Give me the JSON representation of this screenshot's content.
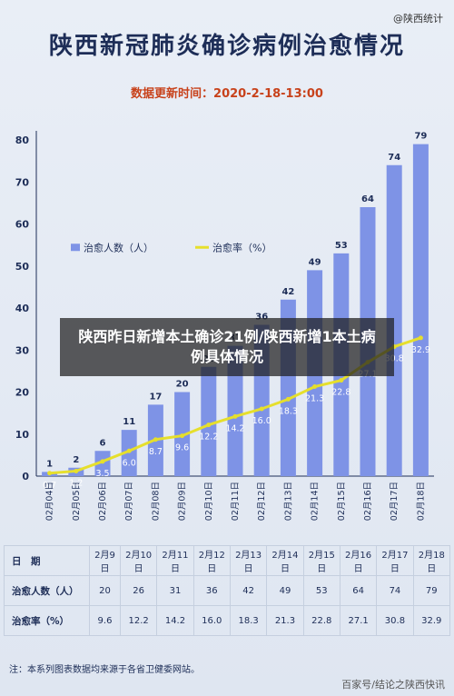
{
  "header": {
    "source": "@陕西统计",
    "title": "陕西新冠肺炎确诊病例治愈情况",
    "update_time": "数据更新时间：2020-2-18-13:00"
  },
  "overlay_caption": "陕西昨日新增本土确诊21例/陕西新增1本土病例具体情况",
  "chart_data": {
    "type": "bar",
    "categories": [
      "02月04日",
      "02月05日",
      "02月06日",
      "02月07日",
      "02月08日",
      "02月09日",
      "02月10日",
      "02月11日",
      "02月12日",
      "02月13日",
      "02月14日",
      "02月15日",
      "02月16日",
      "02月17日",
      "02月18日"
    ],
    "series": [
      {
        "name": "治愈人数（人）",
        "type": "bar",
        "values": [
          1,
          2,
          6,
          11,
          17,
          20,
          26,
          31,
          36,
          42,
          49,
          53,
          64,
          74,
          79
        ]
      },
      {
        "name": "治愈率（%）",
        "type": "line",
        "values": [
          0.7,
          1.2,
          3.5,
          6.0,
          8.7,
          9.6,
          12.2,
          14.2,
          16.0,
          18.3,
          21.3,
          22.8,
          27.1,
          30.8,
          32.9
        ]
      }
    ],
    "yticks": [
      0,
      10,
      20,
      30,
      40,
      50,
      60,
      70,
      80
    ],
    "ylim": [
      0,
      80
    ],
    "legend_position": "left-middle",
    "colors": {
      "bar": "#7e93e6",
      "bar_dark": "#5b73d8",
      "line": "#e6df2c",
      "axis": "#1d2d57"
    }
  },
  "table": {
    "header_label": "日　期",
    "dates": [
      "2月9日",
      "2月10日",
      "2月11日",
      "2月12日",
      "2月13日",
      "2月14日",
      "2月15日",
      "2月16日",
      "2月17日",
      "2月18日"
    ],
    "rows": [
      {
        "label": "治愈人数（人）",
        "values": [
          "20",
          "26",
          "31",
          "36",
          "42",
          "49",
          "53",
          "64",
          "74",
          "79"
        ]
      },
      {
        "label": "治愈率（%）",
        "values": [
          "9.6",
          "12.2",
          "14.2",
          "16.0",
          "18.3",
          "21.3",
          "22.8",
          "27.1",
          "30.8",
          "32.9"
        ]
      }
    ]
  },
  "footnote": "注：本系列图表数据均来源于各省卫健委网站。",
  "watermark": "百家号/结论之陕西快讯"
}
